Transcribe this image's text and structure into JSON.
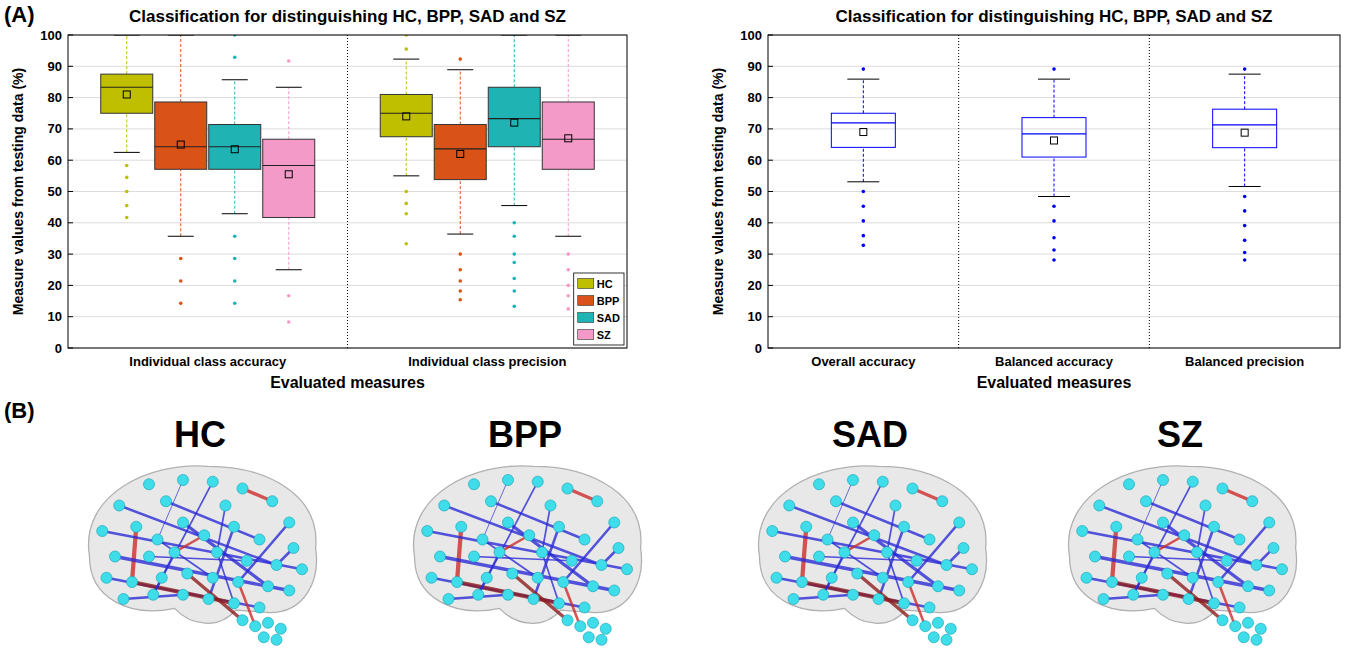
{
  "panel_labels": [
    "(A)",
    "(B)"
  ],
  "chart_data": [
    {
      "type": "box",
      "title": "Classification for distinguishing HC, BPP, SAD and SZ",
      "x_label": "Evaluated measures",
      "y_label": "Measure values from testing data (%)",
      "categories": [
        "Individual class accuracy",
        "Individual class precision"
      ],
      "ylim": [
        0,
        100
      ],
      "yticks": [
        0,
        10,
        20,
        30,
        40,
        50,
        60,
        70,
        80,
        90,
        100
      ],
      "grid": true,
      "legend": "lower right",
      "series": [
        {
          "name": "HC",
          "color": "#bfbf00",
          "low": [
            62.5,
            55
          ],
          "q1": [
            75,
            67.5
          ],
          "median": [
            83.3,
            75
          ],
          "q3": [
            87.5,
            81
          ],
          "high": [
            100,
            92.3
          ],
          "mean": [
            81,
            74
          ],
          "outliers": [
            [
              58.3,
              54.5,
              50,
              45.5,
              41.7
            ],
            [
              100,
              95.5,
              50,
              46.2,
              42.9,
              33.3
            ]
          ]
        },
        {
          "name": "BPP",
          "color": "#d95319",
          "low": [
            35.7,
            36.4
          ],
          "q1": [
            57.1,
            53.8
          ],
          "median": [
            64.3,
            63.6
          ],
          "q3": [
            78.6,
            71.4
          ],
          "high": [
            100,
            88.9
          ],
          "mean": [
            65,
            62
          ],
          "outliers": [
            [
              28.6,
              21.4,
              14.3
            ],
            [
              92.3,
              30,
              25,
              21.4,
              18.2,
              15.4
            ]
          ]
        },
        {
          "name": "SAD",
          "color": "#1fb3b3",
          "low": [
            42.9,
            45.5
          ],
          "q1": [
            57.1,
            64.3
          ],
          "median": [
            64.3,
            73.3
          ],
          "q3": [
            71.4,
            83.3
          ],
          "high": [
            85.7,
            100
          ],
          "mean": [
            63.5,
            72
          ],
          "outliers": [
            [
              100,
              92.9,
              35.7,
              28.6,
              21.4,
              14.3
            ],
            [
              40,
              35.7,
              30,
              27.3,
              22.2,
              18.2,
              13.3
            ]
          ]
        },
        {
          "name": "SZ",
          "color": "#f49ac8",
          "low": [
            25,
            35.7
          ],
          "q1": [
            41.7,
            57.1
          ],
          "median": [
            58.3,
            66.7
          ],
          "q3": [
            66.7,
            78.6
          ],
          "high": [
            83.3,
            100
          ],
          "mean": [
            55.5,
            67
          ],
          "outliers": [
            [
              91.7,
              16.7,
              8.3
            ],
            [
              30,
              25,
              20,
              16.7,
              12.5
            ]
          ]
        }
      ]
    },
    {
      "type": "box",
      "title": "Classification for distinguishing HC, BPP, SAD and SZ",
      "x_label": "Evaluated measures",
      "y_label": "Measure values from testing data (%)",
      "categories": [
        "Overall accuracy",
        "Balanced accuracy",
        "Balanced precision"
      ],
      "ylim": [
        0,
        100
      ],
      "yticks": [
        0,
        10,
        20,
        30,
        40,
        50,
        60,
        70,
        80,
        90,
        100
      ],
      "grid": true,
      "series": [
        {
          "color": "#0000ff",
          "low": [
            53.1,
            48.4,
            51.6
          ],
          "q1": [
            64.1,
            61,
            64
          ],
          "median": [
            71.9,
            68.4,
            71.3
          ],
          "q3": [
            75,
            73.6,
            76.3
          ],
          "high": [
            85.9,
            85.9,
            87.5
          ],
          "mean": [
            69,
            66.3,
            68.8
          ],
          "outliers": [
            [
              89.1,
              50,
              45.3,
              40.6,
              35.9,
              32.8
            ],
            [
              89.1,
              45.3,
              40.6,
              35.2,
              31.3,
              28.1
            ],
            [
              89.1,
              48.4,
              43.8,
              39.1,
              34.4,
              30.5,
              28.1
            ]
          ]
        }
      ]
    }
  ],
  "brain_networks": {
    "titles": [
      "HC",
      "BPP",
      "SAD",
      "SZ"
    ]
  }
}
